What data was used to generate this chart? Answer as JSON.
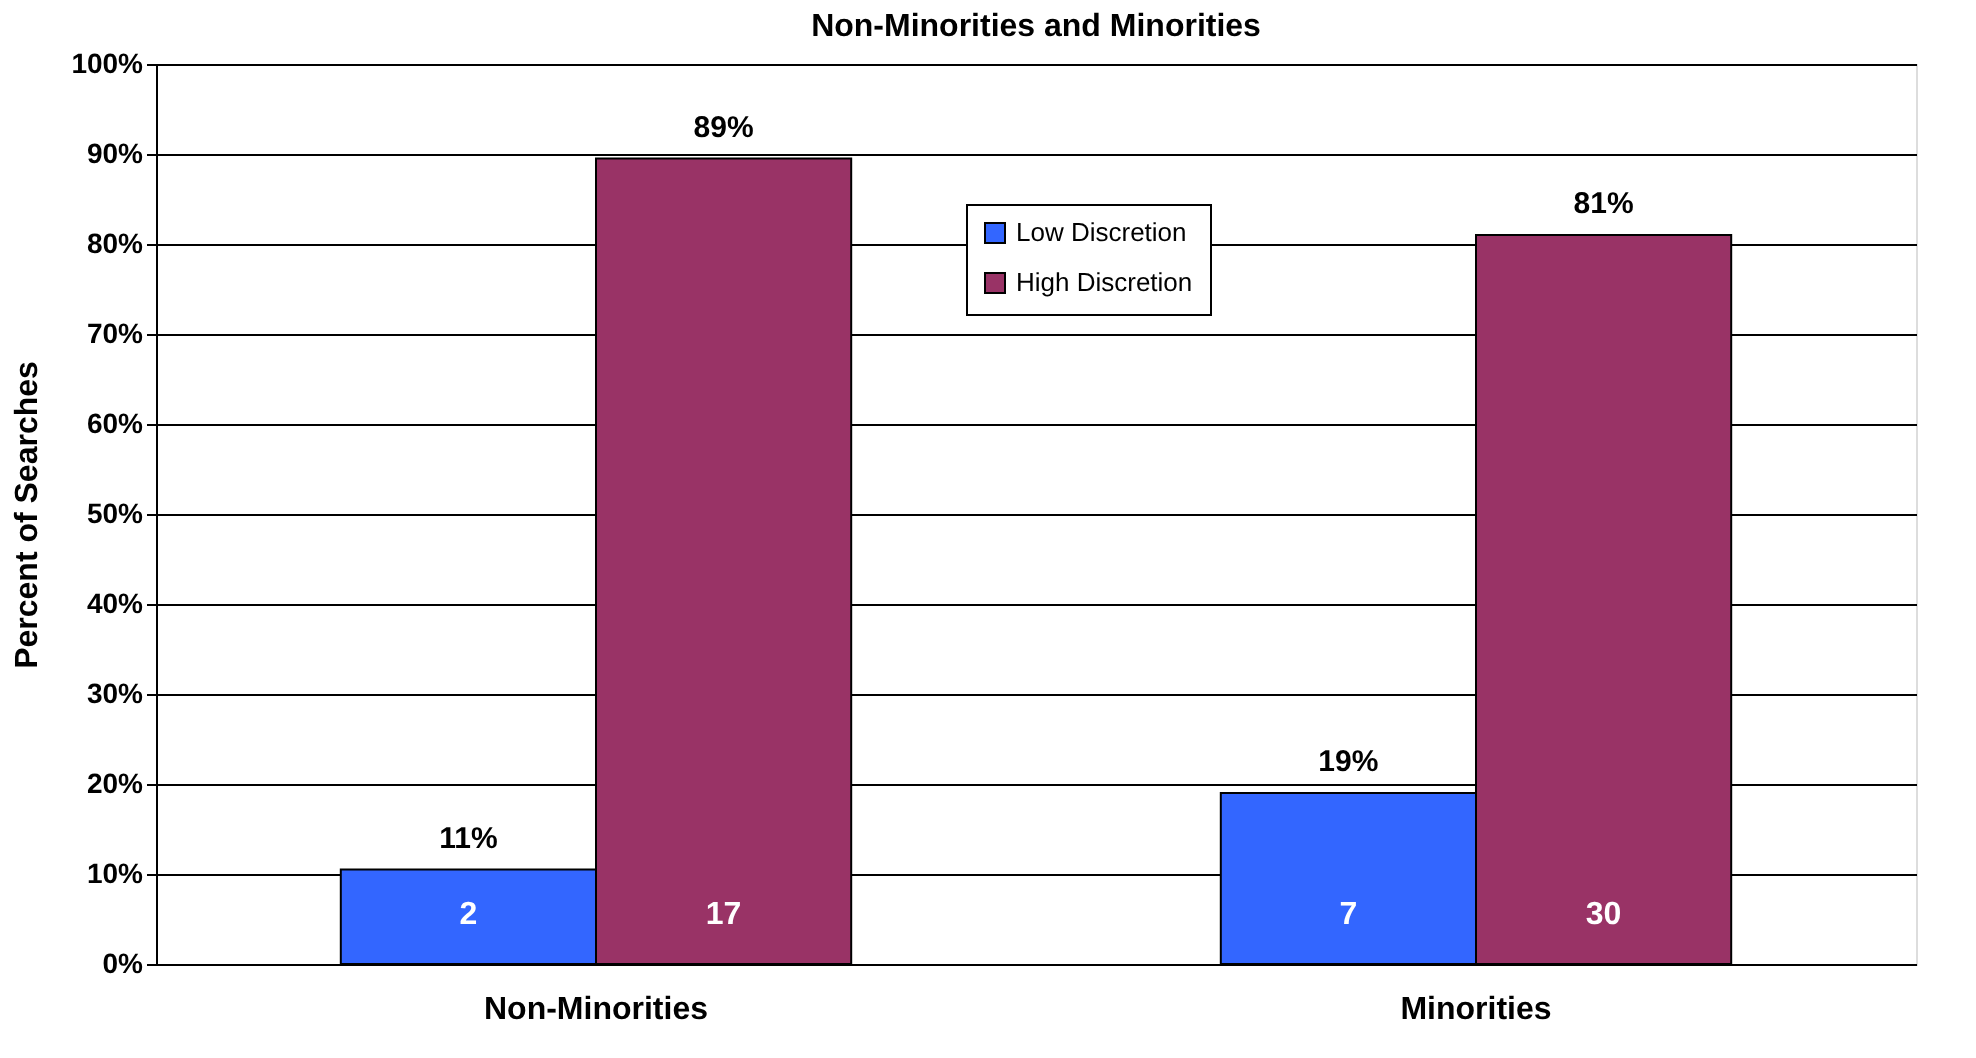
{
  "chart_data": {
    "type": "bar",
    "title": "Non-Minorities and Minorities",
    "ylabel": "Percent of Searches",
    "categories": [
      "Non-Minorities",
      "Minorities"
    ],
    "series": [
      {
        "name": "Low Discretion",
        "color": "#3366ff",
        "values": [
          10.5,
          19
        ],
        "value_labels": [
          "11%",
          "19%"
        ]
      },
      {
        "name": "High Discretion",
        "color": "#993366",
        "values": [
          89.5,
          81
        ],
        "value_labels": [
          "89%",
          "81%"
        ]
      }
    ],
    "annotations": [
      "2",
      "7",
      "17",
      "30"
    ],
    "ylim": [
      0,
      100
    ],
    "yticks": [
      {
        "value": 0,
        "label": "0%"
      },
      {
        "value": 10,
        "label": "10%"
      },
      {
        "value": 20,
        "label": "20%"
      },
      {
        "value": 30,
        "label": "30%"
      },
      {
        "value": 40,
        "label": "40%"
      },
      {
        "value": 50,
        "label": "50%"
      },
      {
        "value": 60,
        "label": "60%"
      },
      {
        "value": 70,
        "label": "70%"
      },
      {
        "value": 80,
        "label": "80%"
      },
      {
        "value": 90,
        "label": "90%"
      },
      {
        "value": 100,
        "label": "100%"
      }
    ],
    "grid": "y",
    "legend": "top"
  }
}
